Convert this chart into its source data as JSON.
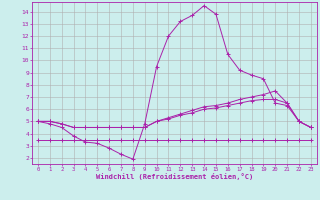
{
  "xlabel": "Windchill (Refroidissement éolien,°C)",
  "background_color": "#cceeed",
  "grid_color": "#b0b0b0",
  "line_color": "#aa22aa",
  "xlim": [
    -0.5,
    23.5
  ],
  "ylim": [
    1.5,
    14.8
  ],
  "yticks": [
    2,
    3,
    4,
    5,
    6,
    7,
    8,
    9,
    10,
    11,
    12,
    13,
    14
  ],
  "xticks": [
    0,
    1,
    2,
    3,
    4,
    5,
    6,
    7,
    8,
    9,
    10,
    11,
    12,
    13,
    14,
    15,
    16,
    17,
    18,
    19,
    20,
    21,
    22,
    23
  ],
  "c1x": [
    0,
    1,
    2,
    3,
    4,
    5,
    6,
    7,
    8,
    9,
    10,
    11,
    12,
    13,
    14,
    15,
    16,
    17,
    18,
    19,
    20,
    21,
    22,
    23
  ],
  "c1y": [
    5.0,
    4.8,
    4.5,
    3.8,
    3.3,
    3.2,
    2.8,
    2.3,
    1.9,
    4.8,
    9.5,
    12.0,
    13.2,
    13.7,
    14.5,
    13.8,
    10.5,
    9.2,
    8.8,
    8.5,
    6.5,
    6.3,
    5.0,
    4.5
  ],
  "c2x": [
    0,
    1,
    2,
    3,
    4,
    5,
    6,
    7,
    8,
    9,
    10,
    11,
    12,
    13,
    14,
    15,
    16,
    17,
    18,
    19,
    20,
    21,
    22,
    23
  ],
  "c2y": [
    5.0,
    5.0,
    4.8,
    4.5,
    4.5,
    4.5,
    4.5,
    4.5,
    4.5,
    4.5,
    5.0,
    5.3,
    5.6,
    5.9,
    6.2,
    6.3,
    6.5,
    6.8,
    7.0,
    7.2,
    7.5,
    6.5,
    5.0,
    4.5
  ],
  "c3x": [
    0,
    1,
    2,
    3,
    4,
    5,
    6,
    7,
    8,
    9,
    10,
    11,
    12,
    13,
    14,
    15,
    16,
    17,
    18,
    19,
    20,
    21,
    22,
    23
  ],
  "c3y": [
    5.0,
    5.0,
    4.8,
    4.5,
    4.5,
    4.5,
    4.5,
    4.5,
    4.5,
    4.5,
    5.0,
    5.2,
    5.5,
    5.7,
    6.0,
    6.1,
    6.3,
    6.5,
    6.7,
    6.8,
    6.8,
    6.5,
    5.0,
    4.5
  ],
  "c4x": [
    0,
    1,
    2,
    3,
    4,
    5,
    6,
    7,
    8,
    9,
    10,
    11,
    12,
    13,
    14,
    15,
    16,
    17,
    18,
    19,
    20,
    21,
    22,
    23
  ],
  "c4y": [
    3.5,
    3.5,
    3.5,
    3.5,
    3.5,
    3.5,
    3.5,
    3.5,
    3.5,
    3.5,
    3.5,
    3.5,
    3.5,
    3.5,
    3.5,
    3.5,
    3.5,
    3.5,
    3.5,
    3.5,
    3.5,
    3.5,
    3.5,
    3.5
  ]
}
